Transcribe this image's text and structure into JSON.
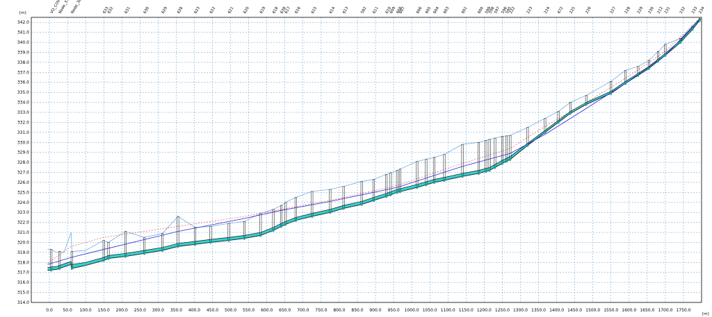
{
  "chart_data": {
    "type": "line",
    "ylabel": "[m]",
    "xlabel": "[m]",
    "xlim": [
      -50,
      1800
    ],
    "ylim": [
      314.0,
      342.5
    ],
    "grid": true,
    "y_ticks": [
      "314.0",
      "315.0",
      "316.0",
      "317.0",
      "318.0",
      "319.0",
      "320.0",
      "321.0",
      "322.0",
      "323.0",
      "324.0",
      "325.0",
      "326.0",
      "327.0",
      "328.0",
      "329.0",
      "330.0",
      "331.0",
      "332.0",
      "333.0",
      "334.0",
      "335.0",
      "336.0",
      "337.0",
      "338.0",
      "339.0",
      "340.0",
      "341.0",
      "342.0"
    ],
    "x_ticks": [
      "0.0",
      "50.0",
      "100.0",
      "150.0",
      "200.0",
      "250.0",
      "300.0",
      "350.0",
      "400.0",
      "450.0",
      "500.0",
      "550.0",
      "600.0",
      "650.0",
      "700.0",
      "750.0",
      "800.0",
      "850.0",
      "900.0",
      "950.0",
      "1000.0",
      "1050.0",
      "1100.0",
      "1150.0",
      "1200.0",
      "1250.0",
      "1300.0",
      "1350.0",
      "1400.0",
      "1450.0",
      "1500.0",
      "1550.0",
      "1600.0",
      "1650.0",
      "1700.0",
      "1750.0"
    ],
    "nodes": [
      {
        "label": "VO_COV",
        "x": 5
      },
      {
        "label": "Node_37",
        "x": 28
      },
      {
        "label": "Node_38",
        "x": 62
      },
      {
        "label": "633",
        "x": 150
      },
      {
        "label": "632",
        "x": 163
      },
      {
        "label": "631",
        "x": 210
      },
      {
        "label": "630",
        "x": 262
      },
      {
        "label": "629",
        "x": 312
      },
      {
        "label": "628",
        "x": 355
      },
      {
        "label": "623",
        "x": 402
      },
      {
        "label": "622",
        "x": 445
      },
      {
        "label": "621",
        "x": 495
      },
      {
        "label": "620",
        "x": 538
      },
      {
        "label": "619",
        "x": 583
      },
      {
        "label": "618",
        "x": 618
      },
      {
        "label": "638",
        "x": 640
      },
      {
        "label": "617",
        "x": 652
      },
      {
        "label": "616",
        "x": 680
      },
      {
        "label": "615",
        "x": 725
      },
      {
        "label": "614",
        "x": 775
      },
      {
        "label": "613",
        "x": 812
      },
      {
        "label": "582",
        "x": 862
      },
      {
        "label": "611",
        "x": 895
      },
      {
        "label": "610",
        "x": 930
      },
      {
        "label": "609",
        "x": 942
      },
      {
        "label": "608",
        "x": 960
      },
      {
        "label": "607",
        "x": 968
      },
      {
        "label": "606",
        "x": 1015
      },
      {
        "label": "605",
        "x": 1040
      },
      {
        "label": "604",
        "x": 1062
      },
      {
        "label": "603",
        "x": 1090
      },
      {
        "label": "601",
        "x": 1140
      },
      {
        "label": "600",
        "x": 1185
      },
      {
        "label": "599",
        "x": 1205
      },
      {
        "label": "598",
        "x": 1215
      },
      {
        "label": "597",
        "x": 1230
      },
      {
        "label": "596",
        "x": 1250
      },
      {
        "label": "595",
        "x": 1262
      },
      {
        "label": "222",
        "x": 1272
      },
      {
        "label": "223",
        "x": 1320
      },
      {
        "label": "224",
        "x": 1368
      },
      {
        "label": "672",
        "x": 1405
      },
      {
        "label": "225",
        "x": 1438
      },
      {
        "label": "226",
        "x": 1482
      },
      {
        "label": "227",
        "x": 1550
      },
      {
        "label": "228",
        "x": 1590
      },
      {
        "label": "229",
        "x": 1625
      },
      {
        "label": "230",
        "x": 1655
      },
      {
        "label": "212",
        "x": 1680
      },
      {
        "label": "231",
        "x": 1700
      },
      {
        "label": "232",
        "x": 1742
      },
      {
        "label": "233",
        "x": 1775
      },
      {
        "label": "234",
        "x": 1795
      }
    ],
    "series": [
      {
        "role": "ground",
        "x": [
          -5,
          5,
          20,
          28,
          40,
          60,
          62,
          100,
          150,
          163,
          210,
          262,
          312,
          355,
          402,
          445,
          495,
          538,
          583,
          618,
          640,
          652,
          680,
          725,
          775,
          812,
          862,
          895,
          930,
          960,
          1015,
          1062,
          1090,
          1140,
          1185,
          1215,
          1250,
          1272,
          1320,
          1368,
          1405,
          1438,
          1482,
          1550,
          1590,
          1625,
          1655,
          1700,
          1742,
          1775,
          1795
        ],
        "y": [
          319.3,
          319.3,
          319.0,
          319.1,
          319.0,
          321.0,
          319.1,
          319.2,
          320.2,
          320.0,
          321.1,
          320.5,
          320.9,
          322.6,
          321.5,
          321.6,
          321.9,
          322.1,
          322.9,
          323.3,
          323.7,
          324.0,
          324.5,
          325.1,
          325.3,
          325.6,
          326.1,
          326.3,
          326.8,
          327.2,
          328.1,
          328.5,
          328.8,
          329.8,
          330.0,
          330.3,
          330.6,
          330.7,
          331.5,
          332.4,
          333.1,
          334.0,
          334.7,
          336.1,
          337.2,
          337.6,
          338.2,
          339.8,
          340.4,
          341.6,
          342.4
        ]
      },
      {
        "role": "invert",
        "x": [
          -5,
          20,
          28,
          60,
          62,
          100,
          150,
          163,
          210,
          262,
          312,
          355,
          402,
          445,
          495,
          538,
          583,
          618,
          640,
          652,
          680,
          725,
          775,
          812,
          862,
          895,
          930,
          960,
          1015,
          1062,
          1090,
          1140,
          1185,
          1215,
          1250,
          1272,
          1320,
          1368,
          1405,
          1438,
          1482,
          1550,
          1590,
          1625,
          1655,
          1700,
          1742,
          1775,
          1795
        ],
        "y": [
          317.2,
          317.3,
          317.4,
          317.8,
          317.4,
          317.7,
          318.2,
          318.4,
          318.6,
          318.9,
          319.2,
          319.6,
          319.8,
          320.0,
          320.2,
          320.4,
          320.7,
          321.2,
          321.6,
          321.8,
          322.2,
          322.6,
          323.0,
          323.4,
          323.8,
          324.2,
          324.6,
          325.0,
          325.5,
          326.0,
          326.2,
          326.6,
          326.9,
          327.2,
          327.9,
          328.3,
          329.7,
          331.0,
          332.0,
          332.9,
          333.8,
          334.9,
          335.9,
          336.7,
          337.4,
          338.7,
          340.0,
          341.3,
          342.2
        ]
      },
      {
        "role": "crown",
        "x": [
          -5,
          20,
          28,
          60,
          62,
          100,
          150,
          163,
          210,
          262,
          312,
          355,
          402,
          445,
          495,
          538,
          583,
          618,
          640,
          652,
          680,
          725,
          775,
          812,
          862,
          895,
          930,
          960,
          1015,
          1062,
          1090,
          1140,
          1185,
          1215,
          1250,
          1272,
          1320,
          1368,
          1405,
          1438,
          1482,
          1550,
          1590,
          1625,
          1655,
          1700,
          1742,
          1775,
          1795
        ],
        "y": [
          317.5,
          317.6,
          317.7,
          318.1,
          317.8,
          318.0,
          318.5,
          318.7,
          318.9,
          319.2,
          319.5,
          319.9,
          320.1,
          320.3,
          320.5,
          320.7,
          321.0,
          321.5,
          321.9,
          322.1,
          322.5,
          322.9,
          323.3,
          323.7,
          324.1,
          324.5,
          324.9,
          325.3,
          325.8,
          326.3,
          326.5,
          326.9,
          327.2,
          327.5,
          328.2,
          328.6,
          329.9,
          331.2,
          332.2,
          333.1,
          334.0,
          335.1,
          336.1,
          336.9,
          337.6,
          338.9,
          340.2,
          341.5,
          342.4
        ]
      },
      {
        "role": "water-level",
        "x": [
          -5,
          60,
          150,
          355,
          538,
          640,
          775,
          960,
          1140,
          1272,
          1368,
          1482,
          1590,
          1700,
          1795
        ],
        "y": [
          317.8,
          318.5,
          319.3,
          321.1,
          322.4,
          323.2,
          324.1,
          325.5,
          327.6,
          328.9,
          330.8,
          333.4,
          335.9,
          338.7,
          342.3
        ]
      },
      {
        "role": "energy-line",
        "x": [
          -5,
          60,
          150,
          355,
          538,
          640,
          775,
          960,
          1140,
          1272,
          1368,
          1482,
          1590,
          1700,
          1795
        ],
        "y": [
          317.9,
          319.6,
          320.5,
          321.6,
          322.6,
          323.3,
          324.2,
          325.7,
          327.9,
          329.4,
          331.6,
          334.0,
          336.4,
          339.1,
          342.4
        ]
      }
    ]
  }
}
